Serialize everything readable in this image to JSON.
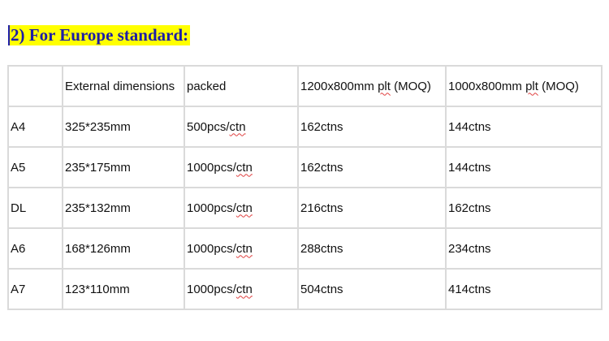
{
  "heading": "2) For Europe standard:",
  "table": {
    "headers": [
      "",
      "External dimensions",
      "packed",
      "1200x800mm ",
      "plt",
      " (MOQ)",
      "1000x800mm ",
      "plt",
      " (MOQ)"
    ],
    "header_cells": [
      "",
      "External dimensions",
      "packed",
      "1200x800mm plt (MOQ)",
      "1000x800mm plt (MOQ)"
    ],
    "rows": [
      {
        "size": "A4",
        "dimensions": "325*235mm",
        "packed_qty": "500pcs/",
        "packed_unit": "ctn",
        "plt1200": "162ctns",
        "plt1000": "144ctns"
      },
      {
        "size": "A5",
        "dimensions": "235*175mm",
        "packed_qty": "1000pcs/",
        "packed_unit": "ctn",
        "plt1200": "162ctns",
        "plt1000": "144ctns"
      },
      {
        "size": "DL",
        "dimensions": "235*132mm",
        "packed_qty": "1000pcs/",
        "packed_unit": "ctn",
        "plt1200": "216ctns",
        "plt1000": "162ctns"
      },
      {
        "size": "A6",
        "dimensions": "168*126mm",
        "packed_qty": "1000pcs/",
        "packed_unit": "ctn",
        "plt1200": "288ctns",
        "plt1000": "234ctns"
      },
      {
        "size": "A7",
        "dimensions": "123*110mm",
        "packed_qty": "1000pcs/",
        "packed_unit": "ctn",
        "plt1200": "504ctns",
        "plt1000": "414ctns"
      }
    ]
  },
  "colors": {
    "heading_text": "#1c1ca8",
    "highlight": "#ffff00",
    "grid": "#dadada",
    "spellcheck": "#e04040"
  }
}
